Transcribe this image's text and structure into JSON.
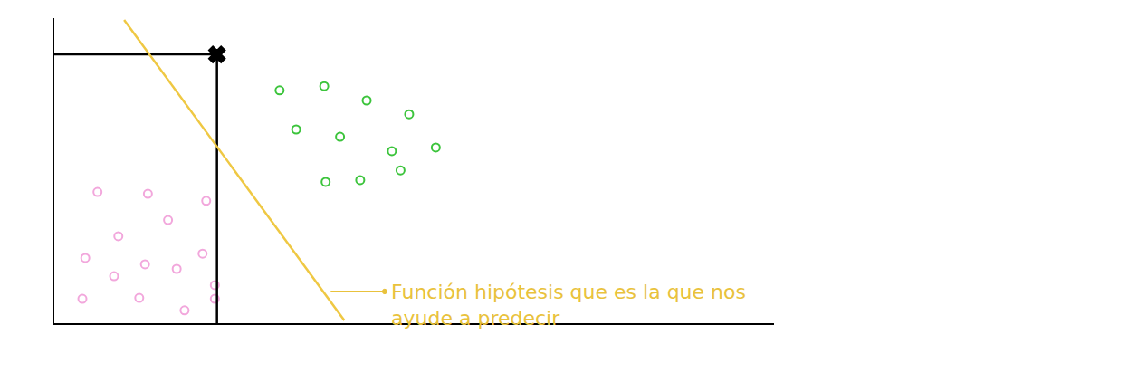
{
  "chart_data": {
    "type": "scatter",
    "xlim": [
      0,
      100
    ],
    "ylim": [
      0,
      100
    ],
    "tick_labels": false,
    "grid": false,
    "annotations": [
      "Función hipótesis que es la que nos\nayude a predecir"
    ],
    "series": [
      {
        "type": "scatter",
        "color": "#f2a7dc",
        "marker": "circle-open",
        "x": [
          6.0,
          13.0,
          21.1,
          15.8,
          8.9,
          4.3,
          20.6,
          12.6,
          17.0,
          8.3,
          22.3,
          3.9,
          11.8,
          22.3,
          18.1
        ],
        "values": [
          43.0,
          42.4,
          40.1,
          33.8,
          28.5,
          21.4,
          22.8,
          19.3,
          17.8,
          15.4,
          12.5,
          8.0,
          8.3,
          8.0,
          4.2
        ]
      },
      {
        "type": "scatter",
        "color": "#3cc43c",
        "marker": "circle-open",
        "x": [
          31.3,
          37.5,
          43.4,
          49.3,
          33.6,
          39.7,
          46.9,
          53.0,
          37.7,
          42.5,
          48.1
        ],
        "values": [
          76.3,
          77.7,
          73.0,
          68.5,
          63.5,
          61.1,
          56.4,
          57.6,
          46.3,
          46.9,
          50.1
        ]
      },
      {
        "type": "line",
        "color": "#000000",
        "line_style": "solid",
        "x": [
          0,
          22.6,
          22.6
        ],
        "values": [
          88.1,
          88.1,
          0
        ]
      },
      {
        "type": "scatter",
        "color": "#000000",
        "marker": "x",
        "x": [
          22.6
        ],
        "values": [
          88.1
        ]
      },
      {
        "type": "line",
        "color": "#efc843",
        "line_style": "solid",
        "x": [
          9.7,
          40.3
        ],
        "values": [
          99.4,
          0.9
        ]
      }
    ]
  }
}
